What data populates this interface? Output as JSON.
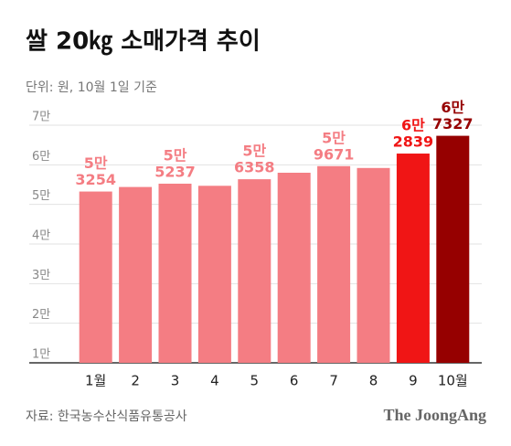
{
  "chart_data": {
    "type": "bar",
    "title": "쌀 20㎏ 소매가격 추이",
    "subtitle": "단위: 원, 10월 1일 기준",
    "source": "자료: 한국농수산식품유통공사",
    "logo": "The JoongAng",
    "categories": [
      "1월",
      "2",
      "3",
      "4",
      "5",
      "6",
      "7",
      "8",
      "9",
      "10월"
    ],
    "values": [
      53254,
      54400,
      55237,
      54700,
      56358,
      58000,
      59671,
      59200,
      62839,
      67327
    ],
    "value_labels": [
      [
        "5만",
        "3254"
      ],
      null,
      [
        "5만",
        "5237"
      ],
      null,
      [
        "5만",
        "6358"
      ],
      null,
      [
        "5만",
        "9671"
      ],
      null,
      [
        "6만",
        "2839"
      ],
      [
        "6만",
        "7327"
      ]
    ],
    "colors": [
      "#f47d83",
      "#f47d83",
      "#f47d83",
      "#f47d83",
      "#f47d83",
      "#f47d83",
      "#f47d83",
      "#f47d83",
      "#f01515",
      "#960000"
    ],
    "label_colors": [
      "#f47d83",
      "#f47d83",
      "#f47d83",
      "#f47d83",
      "#f47d83",
      "#f47d83",
      "#f47d83",
      "#f47d83",
      "#f01515",
      "#960000"
    ],
    "ylim": [
      10000,
      70000
    ],
    "yticks": [
      {
        "value": 10000,
        "label": "1만"
      },
      {
        "value": 20000,
        "label": "2만"
      },
      {
        "value": 30000,
        "label": "3만"
      },
      {
        "value": 40000,
        "label": "4만"
      },
      {
        "value": 50000,
        "label": "5만"
      },
      {
        "value": 60000,
        "label": "6만"
      },
      {
        "value": 70000,
        "label": "7만"
      }
    ],
    "grid": true
  }
}
